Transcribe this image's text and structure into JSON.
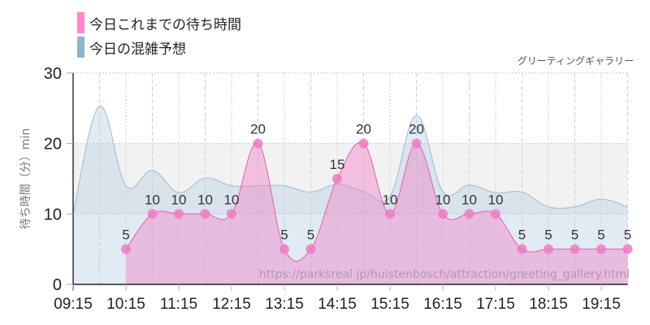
{
  "legend": {
    "items": [
      {
        "label": "今日これまでの待ち時間",
        "color": "#ff88c8"
      },
      {
        "label": "今日の混雑予想",
        "color": "#91b4d1"
      }
    ]
  },
  "subtitle": "グリーティングギャラリー",
  "watermark": "https://parksreal.jp/huistenbosch/attraction/greeting_gallery.html",
  "colors": {
    "actual_fill": "rgba(240,130,200,0.45)",
    "actual_line": "#e060b0",
    "actual_point": "#f07ac6",
    "forecast_fill": "rgba(180,205,225,0.40)",
    "forecast_line": "#a8c2d8",
    "band": "#f2f2f2"
  },
  "chart_data": {
    "type": "area",
    "title": "",
    "xlabel": "",
    "ylabel": "待ち時間（分）min",
    "ylim": [
      0,
      30
    ],
    "yticks": [
      0,
      10,
      20,
      30
    ],
    "x": [
      "09:15",
      "09:45",
      "10:15",
      "10:45",
      "11:15",
      "11:45",
      "12:15",
      "12:45",
      "13:15",
      "13:45",
      "14:15",
      "14:45",
      "15:15",
      "15:45",
      "16:15",
      "16:45",
      "17:15",
      "17:45",
      "18:15",
      "18:45",
      "19:15",
      "19:45"
    ],
    "xtick_labels": [
      "09:15",
      "10:15",
      "11:15",
      "12:15",
      "13:15",
      "14:15",
      "15:15",
      "16:15",
      "17:15",
      "18:15",
      "19:15"
    ],
    "grid": true,
    "legend_position": "top-left",
    "series": [
      {
        "name": "今日これまでの待ち時間",
        "values": [
          null,
          null,
          5,
          10,
          10,
          10,
          10,
          20,
          5,
          5,
          15,
          20,
          10,
          20,
          10,
          10,
          10,
          5,
          5,
          5,
          5,
          5
        ],
        "show_labels": true
      },
      {
        "name": "今日の混雑予想",
        "values": [
          10,
          25.3,
          14,
          16.2,
          13,
          15.1,
          14,
          14,
          14,
          13.1,
          14.2,
          13.2,
          12.5,
          24,
          13.2,
          14.1,
          13,
          13.1,
          11,
          11,
          12.1,
          11
        ],
        "show_labels": false
      }
    ]
  }
}
